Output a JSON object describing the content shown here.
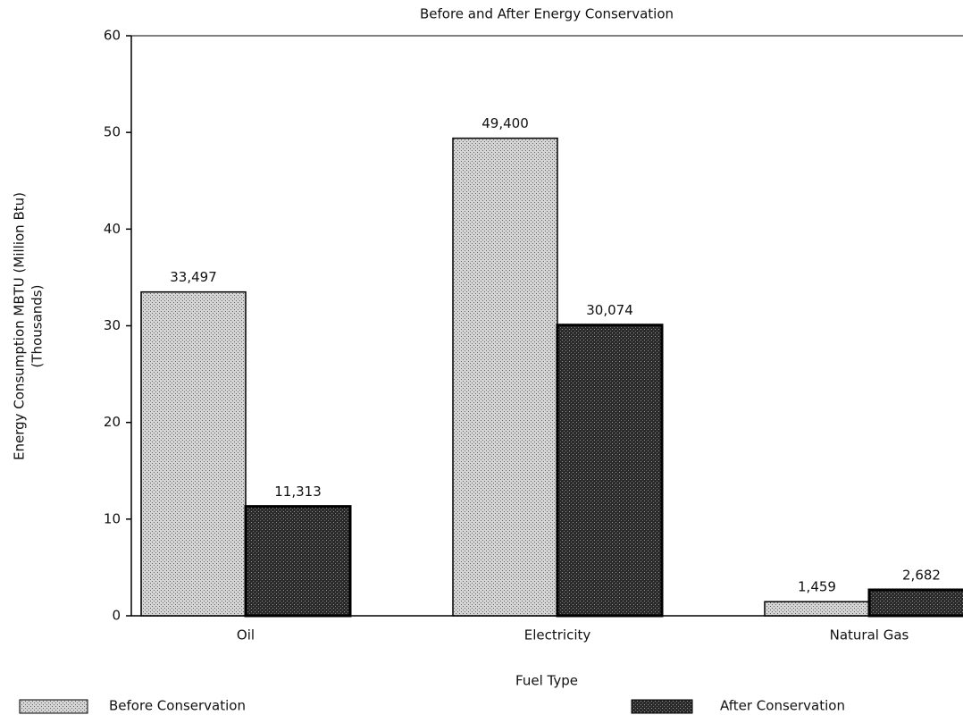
{
  "chart_data": {
    "type": "bar",
    "title": "Before and After Energy Conservation",
    "x_label": "Fuel Type",
    "y_label": [
      "Energy Consumption MBTU (Million Btu)",
      "(Thousands)"
    ],
    "categories": [
      "Oil",
      "Electricity",
      "Natural Gas"
    ],
    "series": [
      {
        "name": "Before Conservation",
        "color": "#d4d4d4",
        "values": [
          33.497,
          49.4,
          1.459
        ],
        "value_labels": [
          "33,497",
          "49,400",
          "1,459"
        ]
      },
      {
        "name": "After Conservation",
        "color": "#2a2a2a",
        "values": [
          11.313,
          30.074,
          2.682
        ],
        "value_labels": [
          "11,313",
          "30,074",
          "2,682"
        ]
      }
    ],
    "ylim": [
      0,
      60
    ],
    "yticks": [
      0,
      10,
      20,
      30,
      40,
      50,
      60
    ],
    "grid": false,
    "legend": "bottom"
  }
}
